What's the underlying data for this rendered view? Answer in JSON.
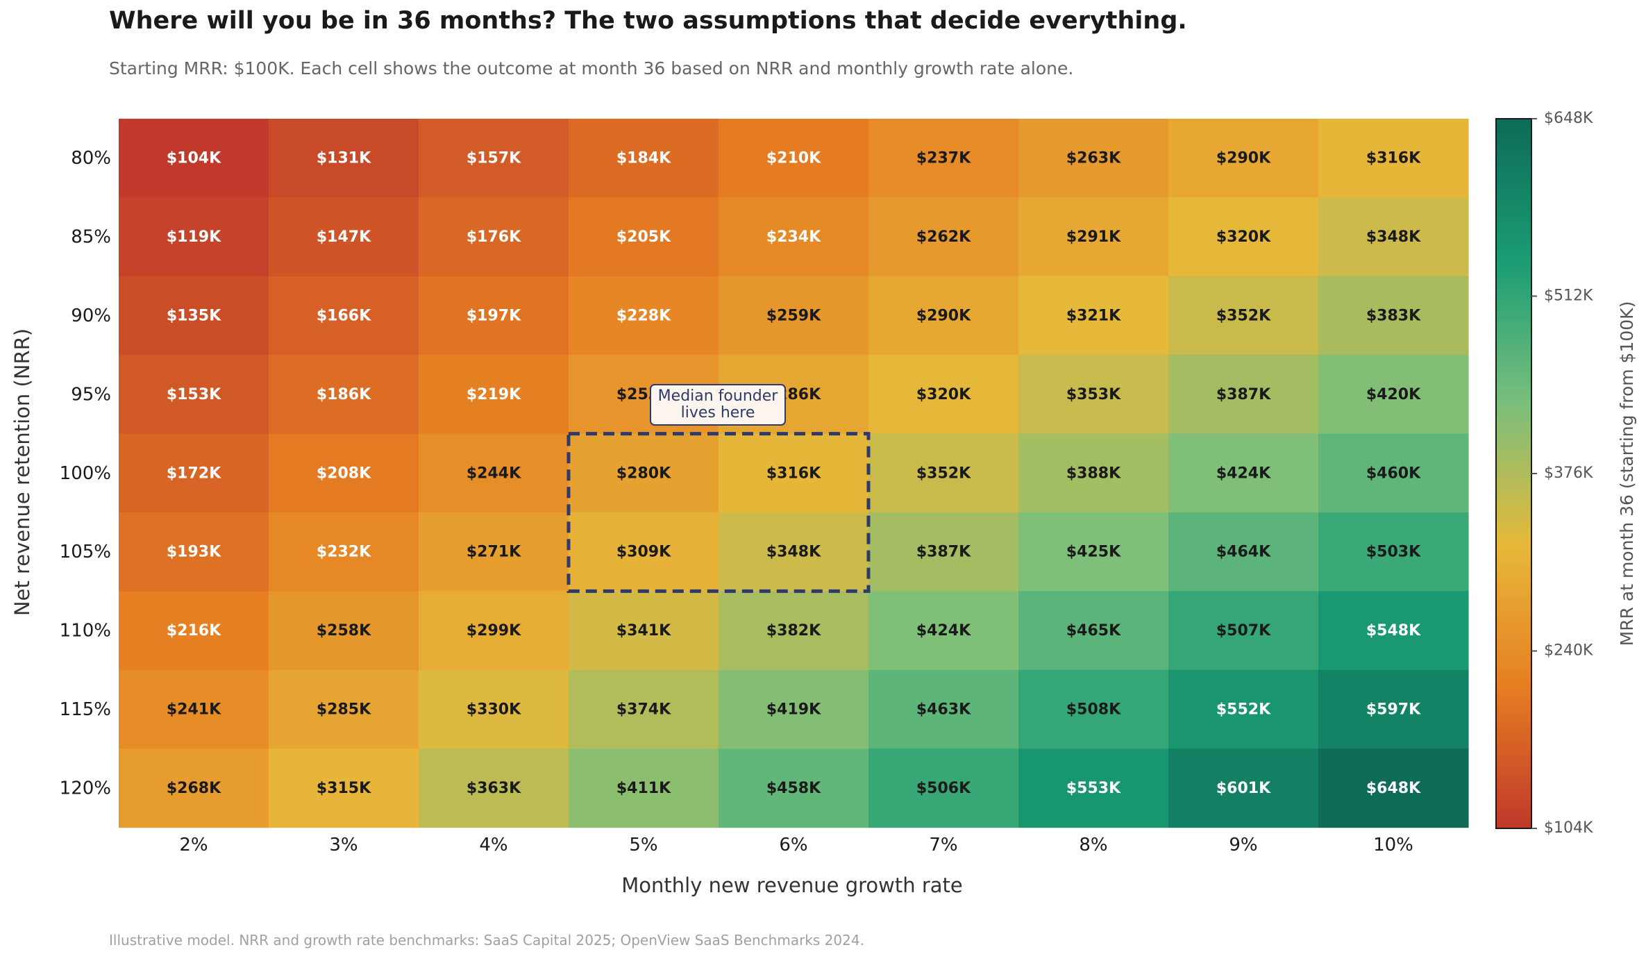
{
  "title": "Where will you be in 36 months? The two assumptions that decide everything.",
  "subtitle": "Starting MRR: $100K. Each cell shows the outcome at month 36 based on NRR and monthly growth rate alone.",
  "footnote": "Illustrative model. NRR and growth rate benchmarks: SaaS Capital 2025; OpenView SaaS Benchmarks 2024.",
  "annotation": {
    "line1": "Median founder",
    "line2": "lives here"
  },
  "colors": {
    "scale": [
      "#c0392b",
      "#e67e22",
      "#e6b93a",
      "#79bf7c",
      "#1a9c74",
      "#0e6b56"
    ],
    "highlight": "#2e3a6b",
    "dark_text": "#1a1a1a",
    "light_text": "#ffffff"
  },
  "chart_data": {
    "type": "heatmap",
    "xlabel": "Monthly new revenue growth rate",
    "ylabel": "Net revenue retention (NRR)",
    "x_categories": [
      "2%",
      "3%",
      "4%",
      "5%",
      "6%",
      "7%",
      "8%",
      "9%",
      "10%"
    ],
    "y_categories": [
      "80%",
      "85%",
      "90%",
      "95%",
      "100%",
      "105%",
      "110%",
      "115%",
      "120%"
    ],
    "values": [
      [
        104,
        131,
        157,
        184,
        210,
        237,
        263,
        290,
        316
      ],
      [
        119,
        147,
        176,
        205,
        234,
        262,
        291,
        320,
        348
      ],
      [
        135,
        166,
        197,
        228,
        259,
        290,
        321,
        352,
        383
      ],
      [
        153,
        186,
        219,
        253,
        286,
        320,
        353,
        387,
        420
      ],
      [
        172,
        208,
        244,
        280,
        316,
        352,
        388,
        424,
        460
      ],
      [
        193,
        232,
        271,
        309,
        348,
        387,
        425,
        464,
        503
      ],
      [
        216,
        258,
        299,
        341,
        382,
        424,
        465,
        507,
        548
      ],
      [
        241,
        285,
        330,
        374,
        419,
        463,
        508,
        552,
        597
      ],
      [
        268,
        315,
        363,
        411,
        458,
        506,
        553,
        601,
        648
      ]
    ],
    "value_format": "$VK",
    "colorbar": {
      "label": "MRR at month 36 (starting from $100K)",
      "ticks": [
        "$104K",
        "$240K",
        "$376K",
        "$512K",
        "$648K"
      ],
      "range": [
        104,
        648
      ]
    },
    "highlight": {
      "x_range": [
        "5%",
        "6%"
      ],
      "y_range": [
        "100%",
        "105%"
      ]
    }
  }
}
